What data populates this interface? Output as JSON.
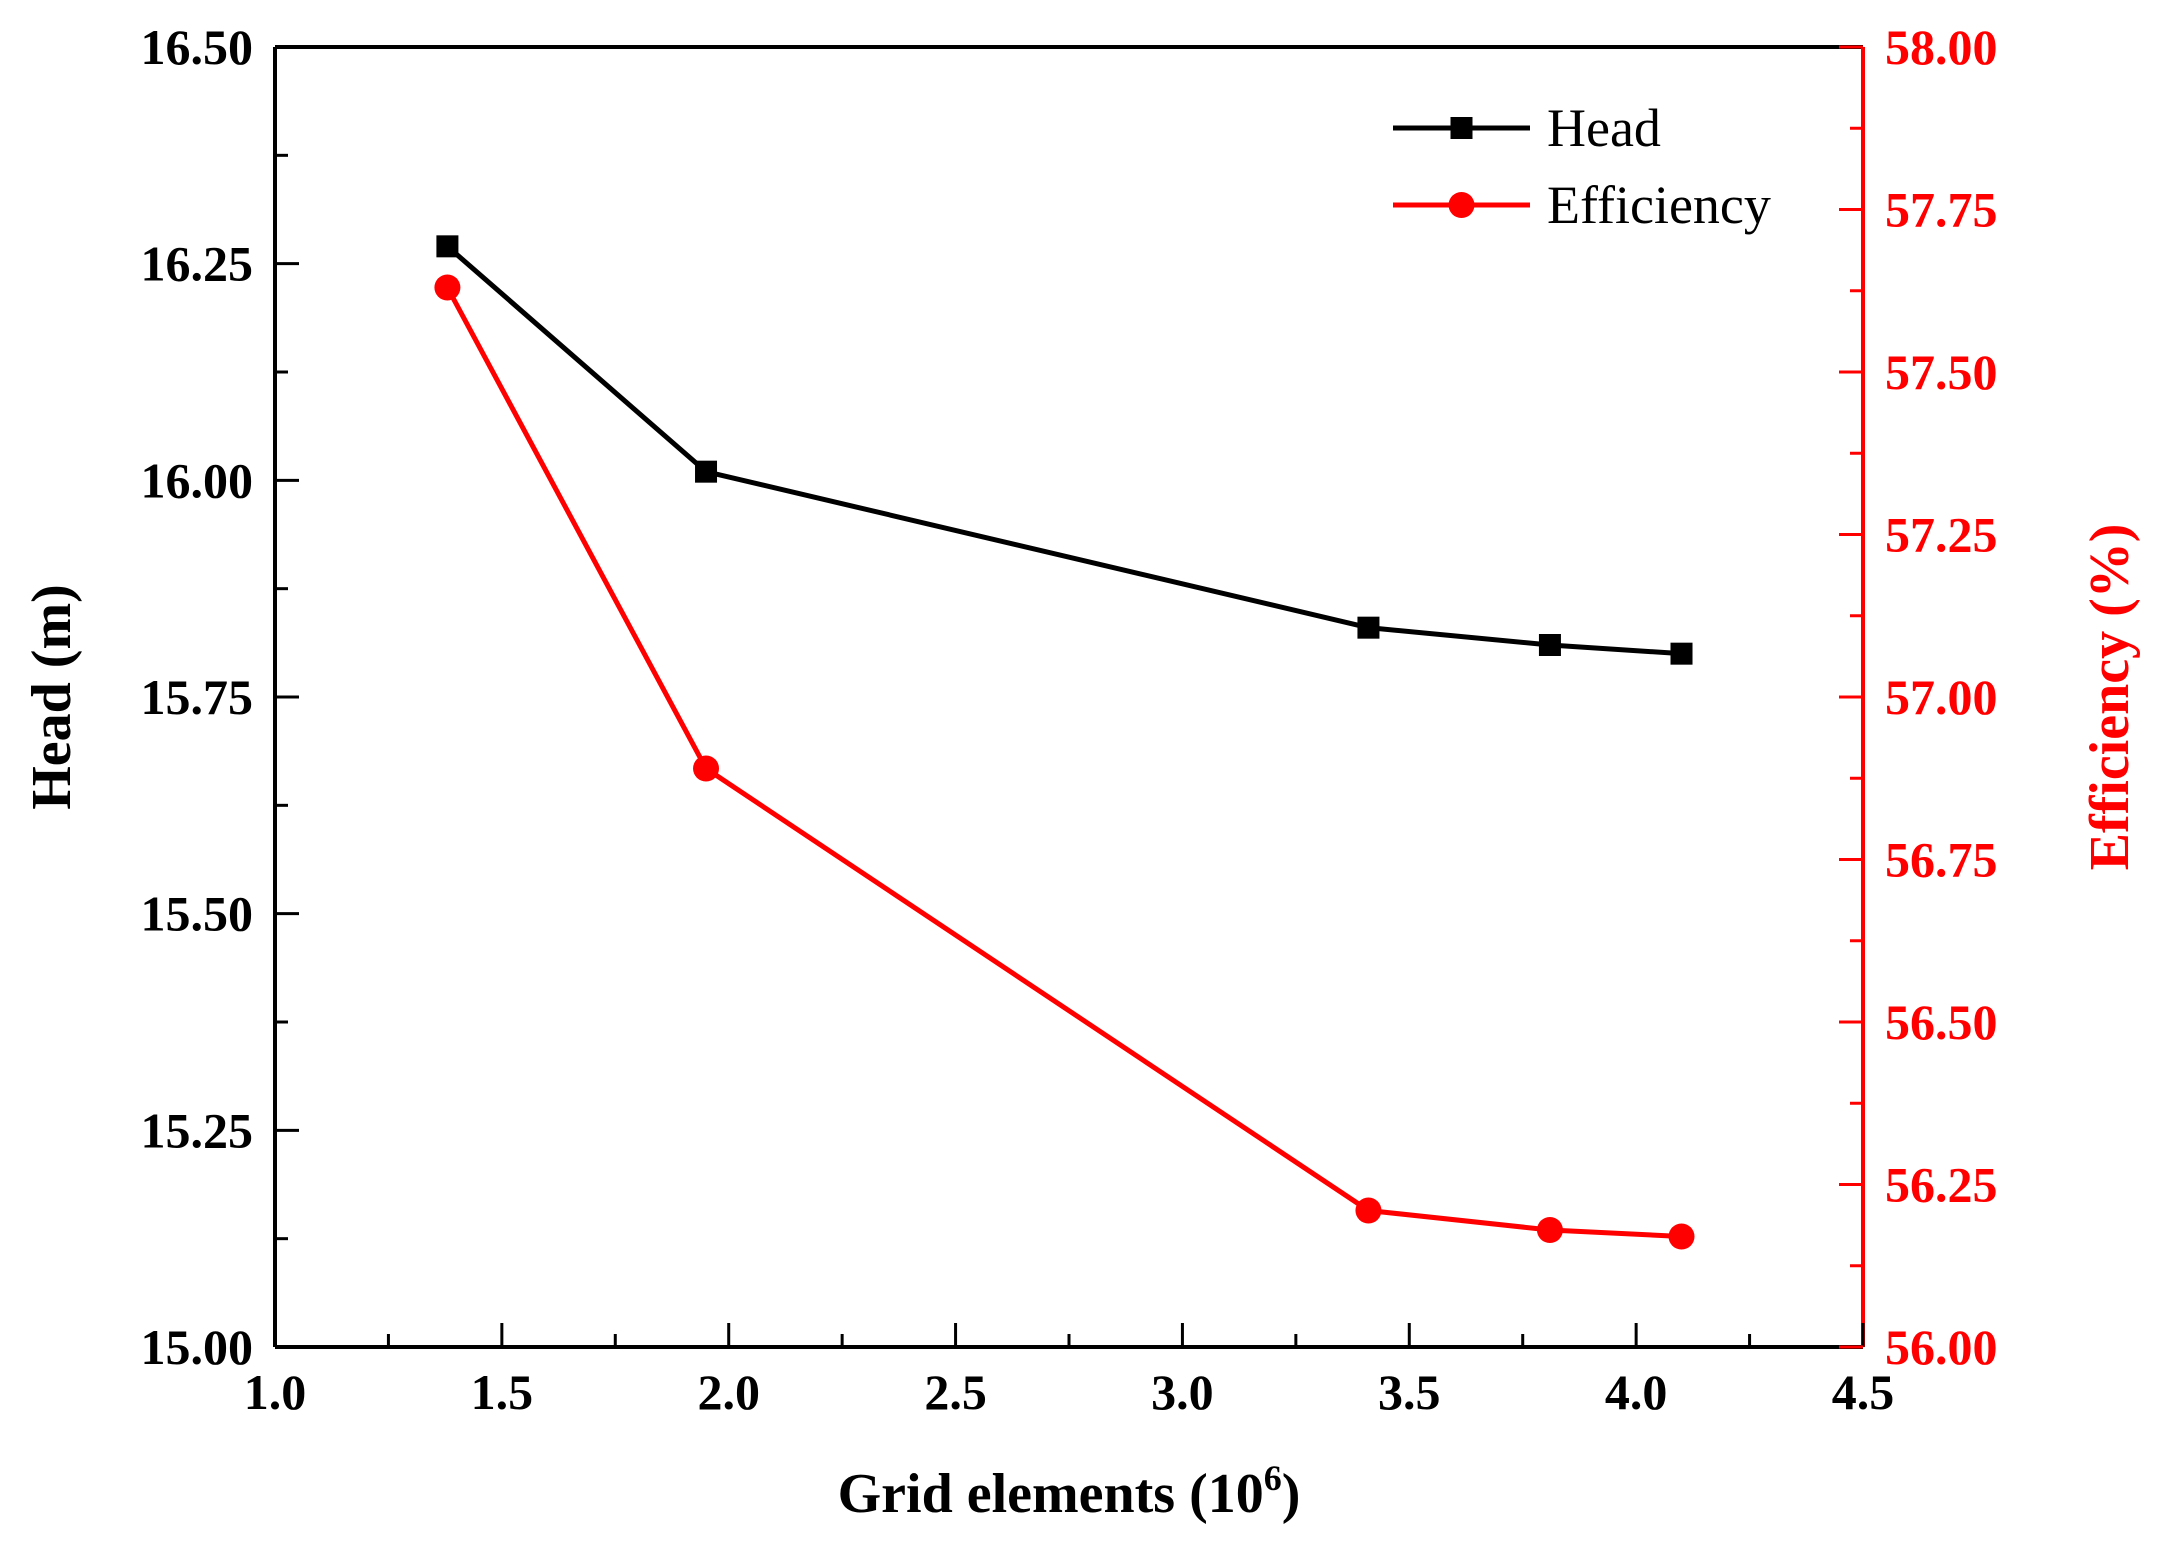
{
  "chart_data": {
    "type": "line",
    "xlabel": "Grid elements (10",
    "xlabel_sup": "6",
    "xlabel_close": ")",
    "xlim": [
      1.0,
      4.5
    ],
    "x_ticks": [
      "1.0",
      "1.5",
      "2.0",
      "2.5",
      "3.0",
      "3.5",
      "4.0",
      "4.5"
    ],
    "x": [
      1.38,
      1.95,
      3.41,
      3.81,
      4.1
    ],
    "left_axis": {
      "label": "Head (m)",
      "ylim": [
        15.0,
        16.5
      ],
      "ticks": [
        "15.00",
        "15.25",
        "15.50",
        "15.75",
        "16.00",
        "16.25",
        "16.50"
      ],
      "color": "#000000"
    },
    "right_axis": {
      "label": "Efficiency (%)",
      "ylim": [
        56.0,
        58.0
      ],
      "ticks": [
        "56.00",
        "56.25",
        "56.50",
        "56.75",
        "57.00",
        "57.25",
        "57.50",
        "57.75",
        "58.00"
      ],
      "color": "#ff0000"
    },
    "series": [
      {
        "name": "Head",
        "axis": "left",
        "color": "#000000",
        "marker": "square",
        "values": [
          16.27,
          16.01,
          15.83,
          15.81,
          15.8
        ]
      },
      {
        "name": "Efficiency",
        "axis": "right",
        "color": "#ff0000",
        "marker": "circle",
        "values": [
          57.63,
          56.89,
          56.21,
          56.18,
          56.17
        ]
      }
    ],
    "legend_position": "top-right"
  }
}
